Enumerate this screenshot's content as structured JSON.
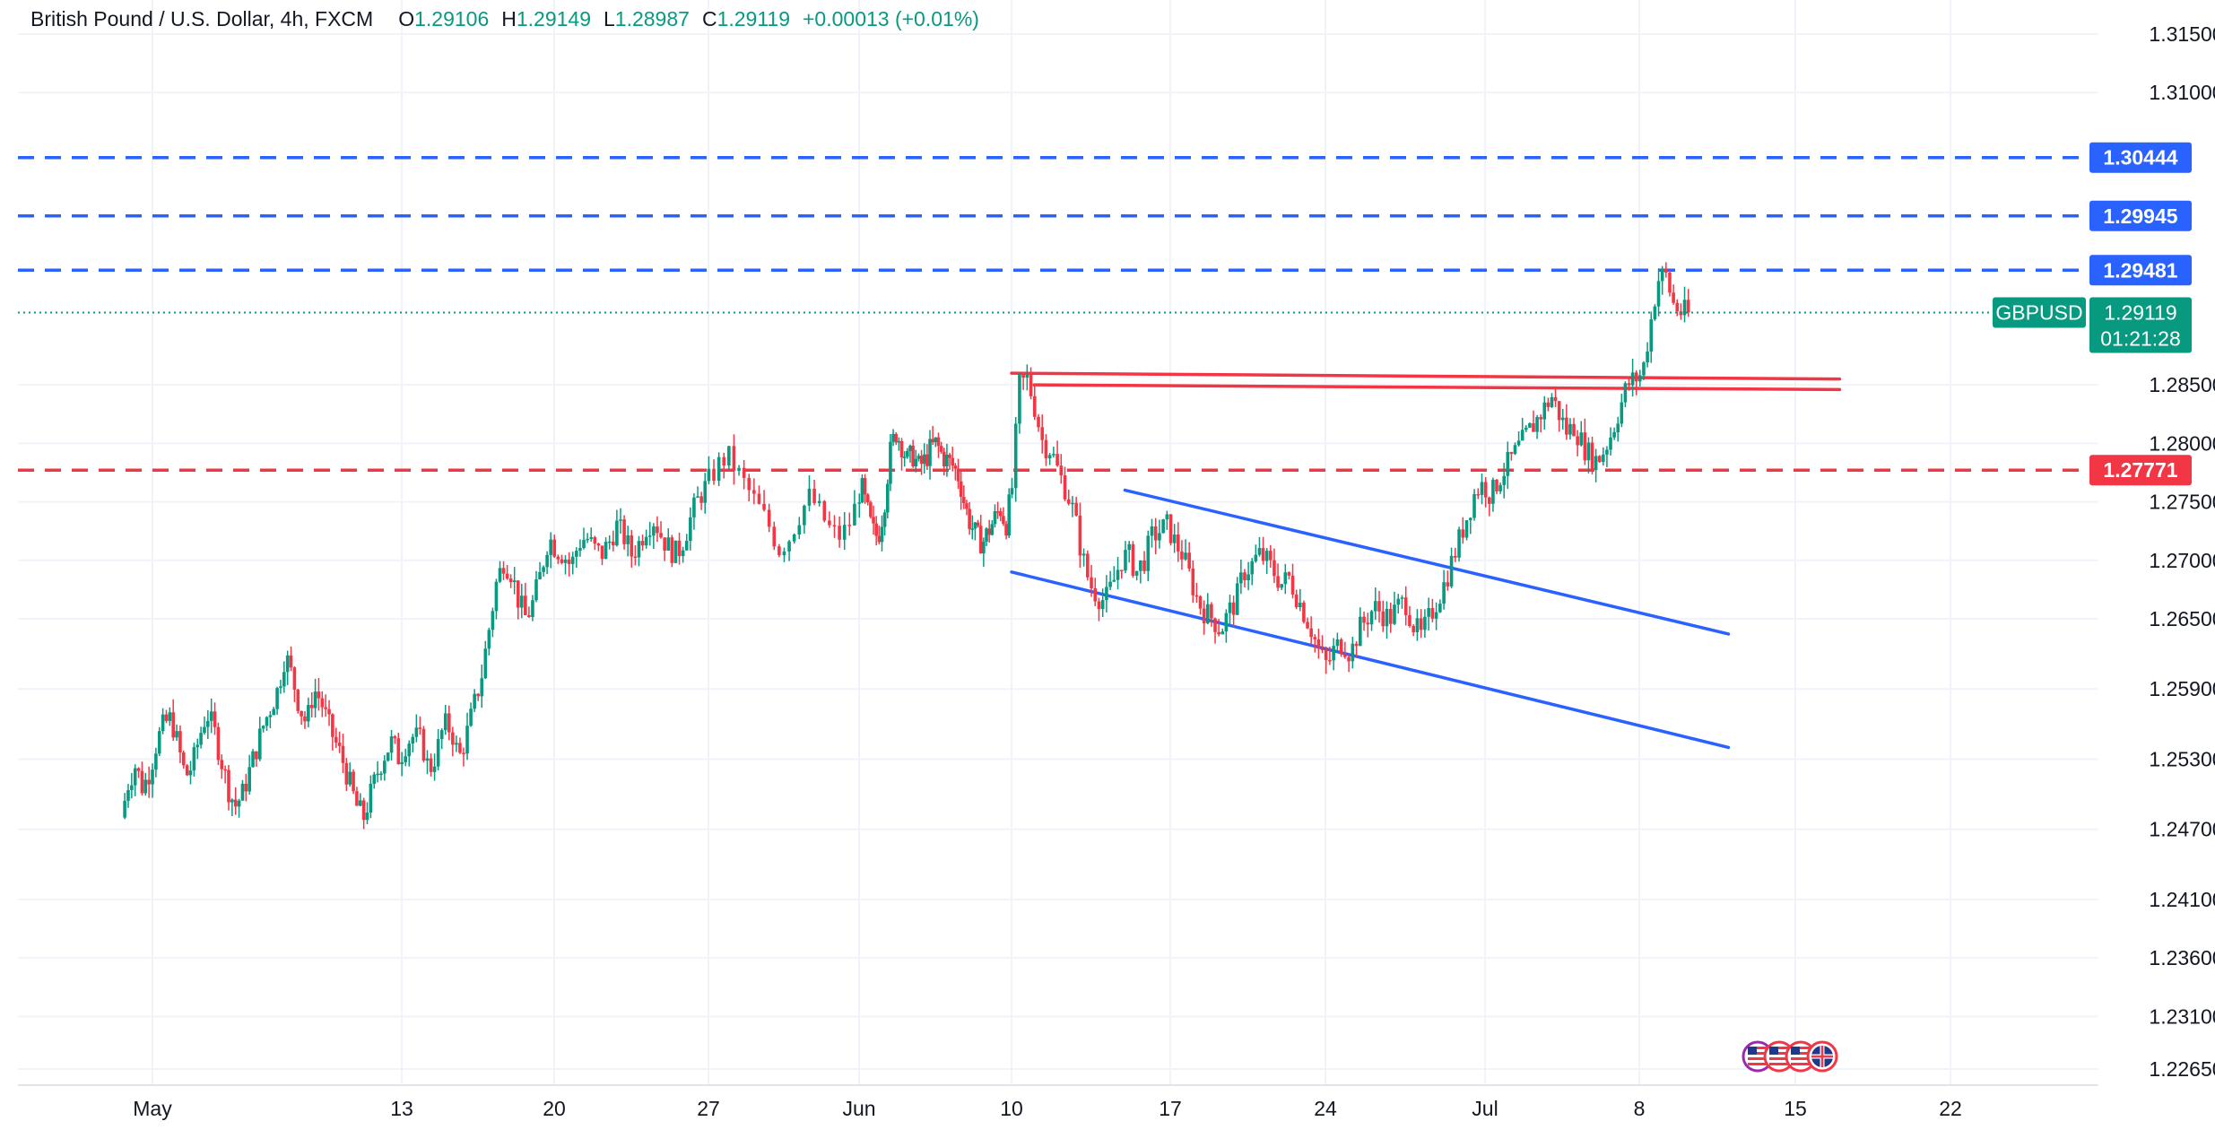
{
  "header": {
    "symbol_full": "British Pound / U.S. Dollar, 4h, FXCM",
    "o_label": "O",
    "o_value": "1.29106",
    "h_label": "H",
    "h_value": "1.29149",
    "l_label": "L",
    "l_value": "1.28987",
    "c_label": "C",
    "c_value": "1.29119",
    "change": "+0.00013 (+0.01%)"
  },
  "colors": {
    "up": "#089981",
    "down": "#f23645",
    "blue_line": "#2962ff",
    "red_line": "#f23645",
    "grid": "#f0f3fa",
    "text": "#131722"
  },
  "chart_data": {
    "type": "candlestick",
    "symbol": "GBPUSD",
    "interval": "4h",
    "last_price": 1.29119,
    "countdown": "01:21:28",
    "ylim": [
      1.224,
      1.317
    ],
    "y_ticks": [
      1.315,
      1.31,
      1.285,
      1.28,
      1.275,
      1.27,
      1.265,
      1.259,
      1.253,
      1.247,
      1.241,
      1.236,
      1.231,
      1.2265
    ],
    "x_ticks": [
      "May",
      "13",
      "20",
      "27",
      "Jun",
      "10",
      "17",
      "24",
      "Jul",
      "8",
      "15",
      "22"
    ],
    "horizontal_levels": [
      {
        "price": 1.30444,
        "label": "1.30444",
        "color": "#2962ff",
        "style": "dashed"
      },
      {
        "price": 1.29945,
        "label": "1.29945",
        "color": "#2962ff",
        "style": "dashed"
      },
      {
        "price": 1.29481,
        "label": "1.29481",
        "color": "#2962ff",
        "style": "dashed"
      },
      {
        "price": 1.27771,
        "label": "1.27771",
        "color": "#f23645",
        "style": "dashed"
      }
    ],
    "trend_lines": [
      {
        "color": "#2962ff",
        "from": [
          "Jun 10",
          1.269
        ],
        "to": [
          "Jul 12",
          1.254
        ]
      },
      {
        "color": "#2962ff",
        "from": [
          "Jun 15",
          1.276
        ],
        "to": [
          "Jul 12",
          1.2637
        ]
      },
      {
        "color": "#f23645",
        "from": [
          "Jun 10",
          1.286
        ],
        "to": [
          "Jul 17",
          1.2855
        ]
      },
      {
        "color": "#f23645",
        "from": [
          "Jun 11",
          1.285
        ],
        "to": [
          "Jul 17",
          1.2846
        ]
      }
    ],
    "price_path": [
      [
        1.248,
        1.251,
        1.2525,
        1.2505,
        1.252,
        1.2545,
        1.256,
        1.2565,
        1.254,
        1.2515
      ],
      [
        1.2525,
        1.255,
        1.257,
        1.2555,
        1.253,
        1.2505,
        1.249,
        1.25,
        1.252,
        1.254
      ],
      [
        1.256,
        1.2575,
        1.259,
        1.262,
        1.26,
        1.2575,
        1.256,
        1.259,
        1.258,
        1.256
      ],
      [
        1.2545,
        1.253,
        1.251,
        1.249,
        1.248,
        1.25,
        1.252,
        1.2535,
        1.2545,
        1.253
      ],
      [
        1.2545,
        1.255,
        1.2545,
        1.252,
        1.2535,
        1.256,
        1.2555,
        1.253,
        1.255,
        1.2575
      ],
      [
        1.26,
        1.264,
        1.268,
        1.27,
        1.269,
        1.2665,
        1.265,
        1.2665,
        1.269,
        1.272
      ],
      [
        1.271,
        1.2705,
        1.2695,
        1.2715,
        1.272,
        1.271,
        1.2705,
        1.2715,
        1.273,
        1.272
      ],
      [
        1.2705,
        1.2715,
        1.273,
        1.2735,
        1.272,
        1.271,
        1.2705,
        1.272,
        1.274,
        1.2755
      ],
      [
        1.2765,
        1.278,
        1.279,
        1.2775,
        1.276,
        1.2745,
        1.273,
        1.271,
        1.272,
        1.274
      ],
      [
        1.2755,
        1.274,
        1.2725,
        1.272,
        1.2735,
        1.2765,
        1.2745,
        1.2725,
        1.272,
        1.2745
      ],
      [
        1.279,
        1.281,
        1.28,
        1.2785,
        1.279,
        1.278,
        1.2785,
        1.2795,
        1.28,
        1.279
      ],
      [
        1.2785,
        1.278,
        1.277,
        1.2745,
        1.273,
        1.272,
        1.2715,
        1.2725,
        1.2735,
        1.2745
      ],
      [
        1.273,
        1.276,
        1.285,
        1.2855,
        1.283,
        1.28,
        1.2795,
        1.2775,
        1.276,
        1.274
      ],
      [
        1.2705,
        1.268,
        1.267,
        1.2665,
        1.268,
        1.27,
        1.2705,
        1.269,
        1.27,
        1.272
      ],
      [
        1.2725,
        1.273,
        1.2715,
        1.2705,
        1.2685,
        1.2665,
        1.2655,
        1.265,
        1.264,
        1.2655
      ],
      [
        1.2665,
        1.269,
        1.2695,
        1.2705,
        1.27,
        1.269,
        1.268,
        1.2685,
        1.267,
        1.2655
      ],
      [
        1.264,
        1.262,
        1.261,
        1.2625,
        1.263,
        1.262,
        1.264,
        1.265,
        1.266,
        1.2655
      ],
      [
        1.265,
        1.266,
        1.2665,
        1.2645,
        1.2635,
        1.265,
        1.2665,
        1.268,
        1.27,
        1.272
      ],
      [
        1.274,
        1.276,
        1.2765,
        1.2755,
        1.277,
        1.278,
        1.279,
        1.28,
        1.281,
        1.282
      ],
      [
        1.283,
        1.284,
        1.2825,
        1.281,
        1.2815,
        1.28,
        1.279,
        1.2785,
        1.2795,
        1.281
      ],
      [
        1.283,
        1.285,
        1.2855,
        1.286,
        1.29,
        1.294,
        1.2945,
        1.292,
        1.2912,
        1.29119
      ]
    ],
    "event_icons": [
      "flag-icon-us",
      "flag-icon-us",
      "flag-icon-us",
      "flag-icon-gb"
    ]
  }
}
